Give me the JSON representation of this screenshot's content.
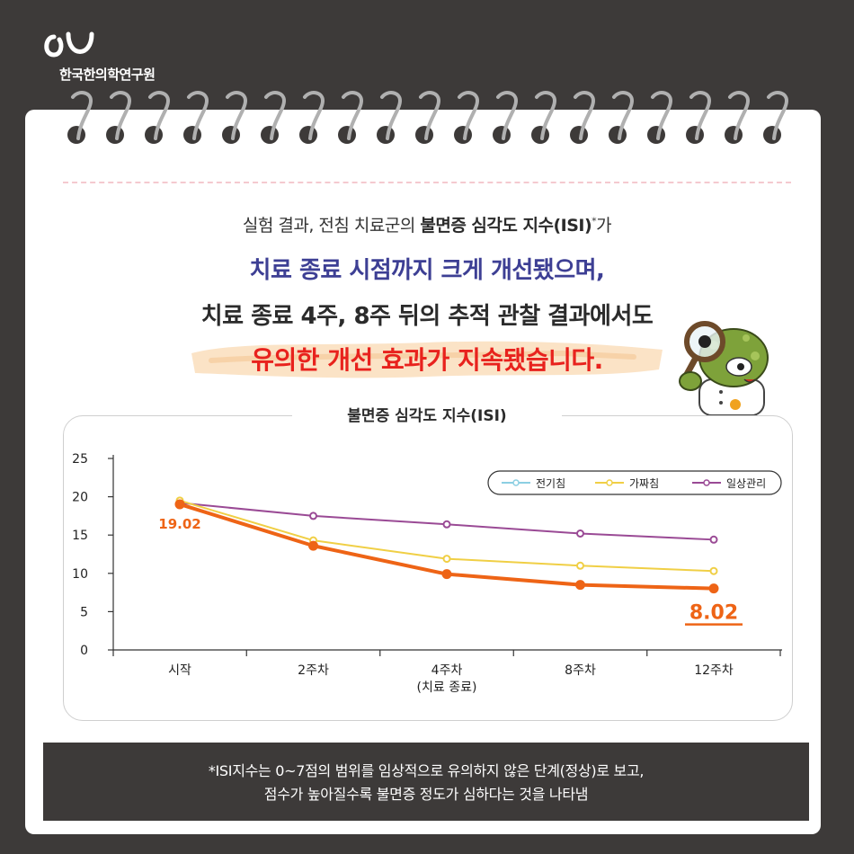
{
  "brand": {
    "org_name": "한국한의학연구원"
  },
  "headline": {
    "line1_pre": "실험 결과, 전침 치료군의 ",
    "line1_bold": "불면증 심각도 지수(ISI)",
    "line1_sup": "*",
    "line1_post": "가",
    "line2": "치료 종료 시점까지 크게 개선됐으며,",
    "line3": "치료 종료 4주, 8주 뒤의 추적 관찰 결과에서도",
    "line4": "유의한 개선 효과가 지속됐습니다."
  },
  "colors": {
    "background": "#3d3a39",
    "headline_blue": "#3d3f94",
    "headline_red": "#e8221d",
    "series_electro": "#ee6416",
    "series_sham": "#f0cf45",
    "series_usual": "#9a4a95",
    "legend_electro": "#8ccfe2"
  },
  "chart_data": {
    "type": "line",
    "title": "불면증 심각도 지수(ISI)",
    "categories": [
      "시작",
      "2주차",
      "4주차",
      "8주차",
      "12주차"
    ],
    "category_sublabels": [
      "",
      "",
      "(치료 종료)",
      "",
      ""
    ],
    "yticks": [
      "0",
      "5",
      "10",
      "15",
      "20",
      "25"
    ],
    "ylim": [
      0,
      25
    ],
    "series": [
      {
        "name": "전기침",
        "values": [
          19.02,
          13.6,
          9.9,
          8.5,
          8.02
        ]
      },
      {
        "name": "가짜침",
        "values": [
          19.5,
          14.3,
          11.9,
          11.0,
          10.3
        ]
      },
      {
        "name": "일상관리",
        "values": [
          19.2,
          17.5,
          16.4,
          15.2,
          14.4
        ]
      }
    ],
    "annotations": {
      "start_label": "19.02",
      "end_label": "8.02"
    },
    "legend_position": "top-right"
  },
  "footnote": {
    "line1": "*ISI지수는 0~7점의 범위를 임상적으로 유의하지 않은 단계(정상)로 보고,",
    "line2": "점수가 높아질수록 불면증 정도가 심하다는 것을 나타냄"
  }
}
